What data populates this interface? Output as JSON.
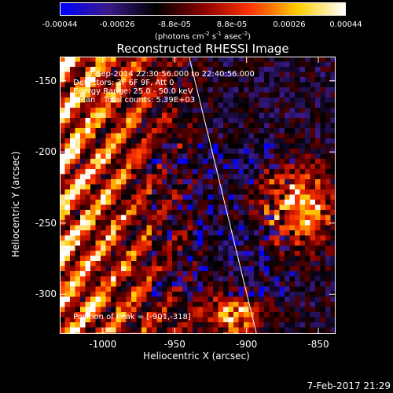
{
  "colorbar": {
    "ticks": [
      "-0.00044",
      "-0.00026",
      "-8.8e-05",
      "8.8e-05",
      "0.00026",
      "0.00044"
    ],
    "unit_main": "(photons cm",
    "unit_sup1": "-2",
    "unit_mid1": " s",
    "unit_sup2": "-1",
    "unit_mid2": " asec",
    "unit_sup3": "-2",
    "unit_end": ")",
    "colors": [
      "#0000ff",
      "#3a1a8a",
      "#000000",
      "#8b0000",
      "#ff3300",
      "#ffcc00",
      "#ffffff"
    ]
  },
  "chart_data": {
    "type": "heatmap",
    "title": "Reconstructed RHESSI Image",
    "xlabel": "Heliocentric X (arcsec)",
    "ylabel": "Heliocentric Y (arcsec)",
    "xlim": [
      -1030,
      -838
    ],
    "ylim": [
      -328,
      -133
    ],
    "xticks": [
      -1000,
      -950,
      -900,
      -850
    ],
    "yticks": [
      -150,
      -200,
      -250,
      -300
    ],
    "xtick_labels": [
      "-1000",
      "-950",
      "-900",
      "-850"
    ],
    "ytick_labels": [
      "-150",
      "-200",
      "-250",
      "-300"
    ],
    "limb_line": [
      [
        -940,
        -133
      ],
      [
        -893,
        -328
      ]
    ],
    "info": {
      "time": "2-Sep-2014 22:30:56.000 to 22:40:56.000",
      "detectors": "Detectors: 3F 6F 9F, Att 0",
      "energy": "Energy Range: 25.0 - 50.0 keV",
      "method": "Clean",
      "counts": "Total counts: 5.39E+03",
      "peak": "Position of Peak = [-901,-318]"
    }
  },
  "footer": {
    "date": "7-Feb-2017 21:29"
  }
}
